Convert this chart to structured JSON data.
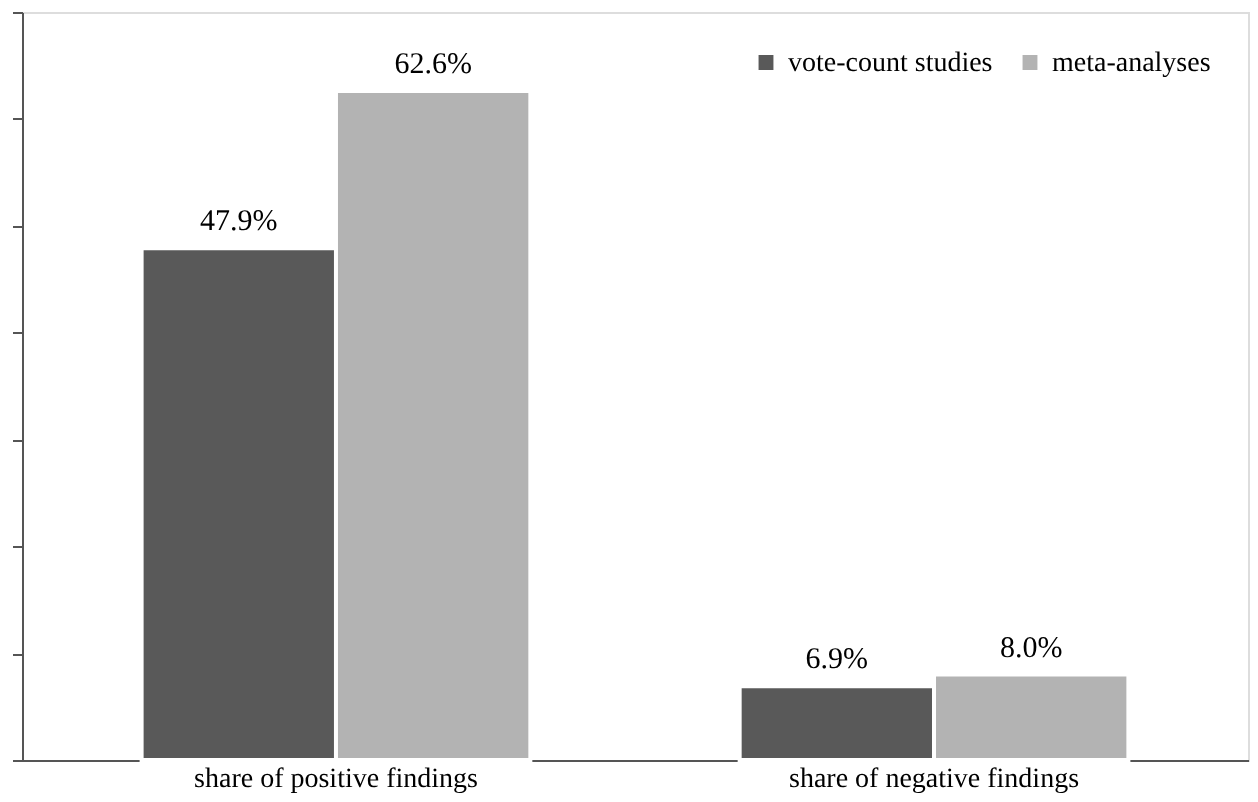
{
  "chart_data": {
    "type": "bar",
    "categories": [
      "share of positive findings",
      "share of negative findings"
    ],
    "series": [
      {
        "name": "vote-count studies",
        "color": "#595959",
        "values": [
          47.9,
          6.9
        ],
        "value_labels": [
          "47.9%",
          "6.9%"
        ]
      },
      {
        "name": "meta-analyses",
        "color": "#b3b3b3",
        "values": [
          62.6,
          8.0
        ],
        "value_labels": [
          "62.6%",
          "8.0%"
        ]
      }
    ],
    "ylim": [
      0,
      70
    ],
    "yticks": [
      {
        "value": 0,
        "label": null
      },
      {
        "value": 10,
        "label": null
      },
      {
        "value": 20,
        "label": null
      },
      {
        "value": 30,
        "label": null
      },
      {
        "value": 40,
        "label": null
      },
      {
        "value": 50,
        "label": null
      },
      {
        "value": 60,
        "label": null
      },
      {
        "value": 70,
        "label": null
      }
    ],
    "tick_labels": "x",
    "grid": false,
    "legend": "top right"
  }
}
